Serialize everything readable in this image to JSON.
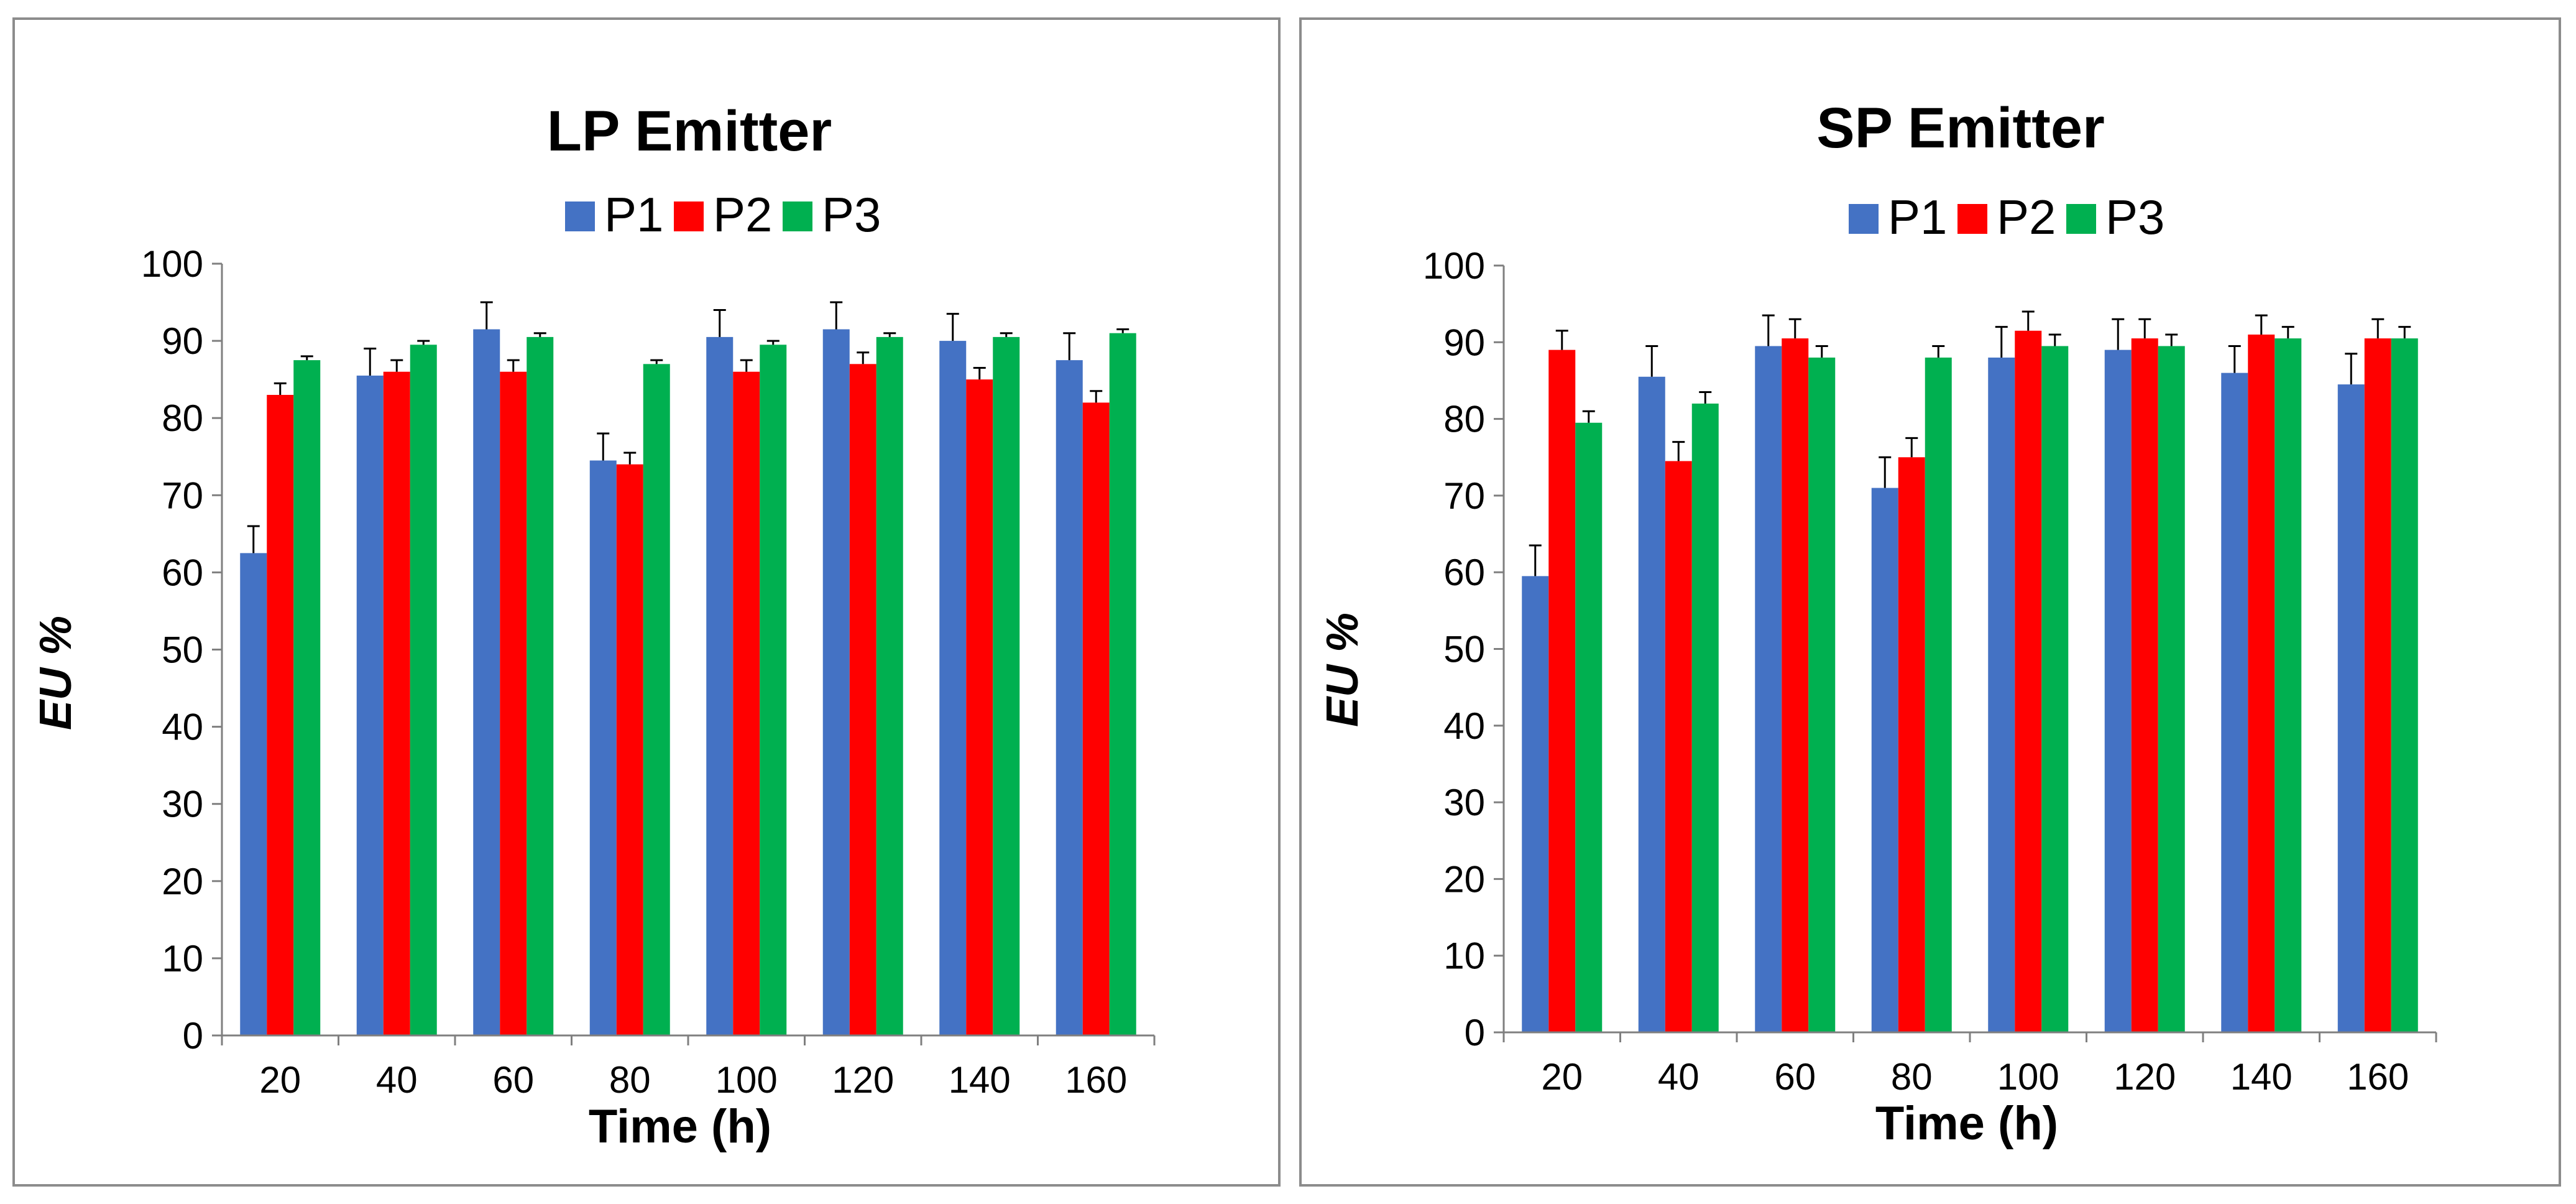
{
  "colors": {
    "P1": "#4472c4",
    "P2": "#ff0000",
    "P3": "#00b050",
    "axis": "#7f7f7f"
  },
  "chart_data": [
    {
      "type": "bar",
      "title": "LP Emitter",
      "xlabel": "Time (h)",
      "ylabel": "EU %",
      "ylim": [
        0,
        100
      ],
      "yticks": [
        "0",
        "10",
        "20",
        "30",
        "40",
        "50",
        "60",
        "70",
        "80",
        "90",
        "100"
      ],
      "categories": [
        "20",
        "40",
        "60",
        "80",
        "100",
        "120",
        "140",
        "160"
      ],
      "legend_position": "top",
      "series": [
        {
          "name": "P1",
          "values": [
            62.5,
            85.5,
            91.5,
            74.5,
            90.5,
            91.5,
            90.0,
            87.5
          ],
          "errors": [
            3.5,
            3.5,
            3.5,
            3.5,
            3.5,
            3.5,
            3.5,
            3.5
          ]
        },
        {
          "name": "P2",
          "values": [
            83.0,
            86.0,
            86.0,
            74.0,
            86.0,
            87.0,
            85.0,
            82.0
          ],
          "errors": [
            1.5,
            1.5,
            1.5,
            1.5,
            1.5,
            1.5,
            1.5,
            1.5
          ]
        },
        {
          "name": "P3",
          "values": [
            87.5,
            89.5,
            90.5,
            87.0,
            89.5,
            90.5,
            90.5,
            91.0
          ],
          "errors": [
            0.5,
            0.5,
            0.5,
            0.5,
            0.5,
            0.5,
            0.5,
            0.5
          ]
        }
      ]
    },
    {
      "type": "bar",
      "title": "SP Emitter",
      "xlabel": "Time (h)",
      "ylabel": "EU %",
      "ylim": [
        0,
        100
      ],
      "yticks": [
        "0",
        "10",
        "20",
        "30",
        "40",
        "50",
        "60",
        "70",
        "80",
        "90",
        "100"
      ],
      "categories": [
        "20",
        "40",
        "60",
        "80",
        "100",
        "120",
        "140",
        "160"
      ],
      "legend_position": "top",
      "series": [
        {
          "name": "P1",
          "values": [
            59.5,
            85.5,
            89.5,
            71.0,
            88.0,
            89.0,
            86.0,
            84.5
          ],
          "errors": [
            4.0,
            4.0,
            4.0,
            4.0,
            4.0,
            4.0,
            3.5,
            4.0
          ]
        },
        {
          "name": "P2",
          "values": [
            89.0,
            74.5,
            90.5,
            75.0,
            91.5,
            90.5,
            91.0,
            90.5
          ],
          "errors": [
            2.5,
            2.5,
            2.5,
            2.5,
            2.5,
            2.5,
            2.5,
            2.5
          ]
        },
        {
          "name": "P3",
          "values": [
            79.5,
            82.0,
            88.0,
            88.0,
            89.5,
            89.5,
            90.5,
            90.5
          ],
          "errors": [
            1.5,
            1.5,
            1.5,
            1.5,
            1.5,
            1.5,
            1.5,
            1.5
          ]
        }
      ]
    }
  ]
}
